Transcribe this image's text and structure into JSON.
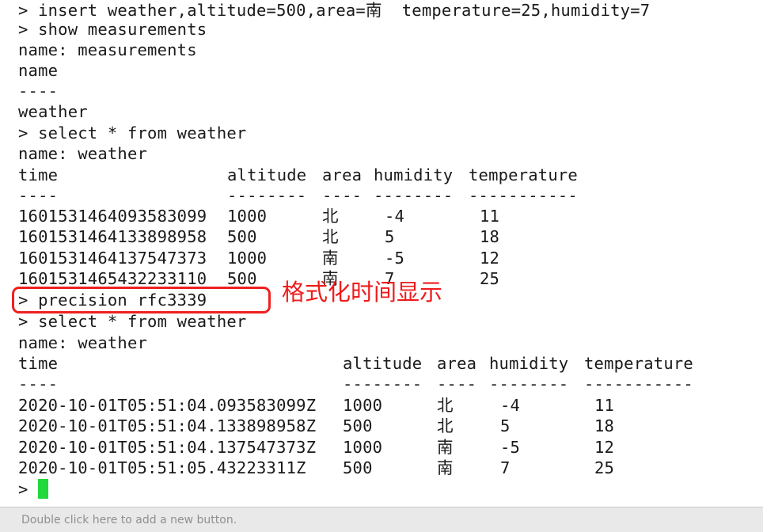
{
  "terminal": {
    "lines": {
      "insert_cmd": "> insert weather,altitude=500,area=南  temperature=25,humidity=7",
      "show_cmd": "> show measurements",
      "show_name": "name: measurements",
      "show_col": "name",
      "show_dash": "----",
      "show_val": "weather",
      "select_cmd_1": "> select * from weather",
      "select_name_1": "name: weather",
      "precision_cmd": "> precision rfc3339",
      "select_cmd_2": "> select * from weather",
      "select_name_2": "name: weather",
      "prompt": ">"
    },
    "table1": {
      "headers": [
        "time",
        "altitude",
        "area",
        "humidity",
        "temperature"
      ],
      "dashes": [
        "----",
        "--------",
        "----",
        "--------",
        "-----------"
      ],
      "rows": [
        [
          "1601531464093583099",
          "1000",
          "北",
          "-4",
          "11"
        ],
        [
          "1601531464133898958",
          "500",
          "北",
          "5",
          "18"
        ],
        [
          "1601531464137547373",
          "1000",
          "南",
          "-5",
          "12"
        ],
        [
          "1601531465432233110",
          "500",
          "南",
          "7",
          "25"
        ]
      ]
    },
    "table2": {
      "headers": [
        "time",
        "altitude",
        "area",
        "humidity",
        "temperature"
      ],
      "dashes": [
        "----",
        "--------",
        "----",
        "--------",
        "-----------"
      ],
      "rows": [
        [
          "2020-10-01T05:51:04.093583099Z",
          "1000",
          "北",
          "-4",
          "11"
        ],
        [
          "2020-10-01T05:51:04.133898958Z",
          "500",
          "北",
          "5",
          "18"
        ],
        [
          "2020-10-01T05:51:04.137547373Z",
          "1000",
          "南",
          "-5",
          "12"
        ],
        [
          "2020-10-01T05:51:05.43223311Z",
          "500",
          "南",
          "7",
          "25"
        ]
      ]
    },
    "cursor_color": "#22d93c"
  },
  "annotation": {
    "text": "格式化时间显示",
    "color": "#ee1c1c"
  },
  "button_bar": {
    "hint": "Double click here to add a new button."
  }
}
